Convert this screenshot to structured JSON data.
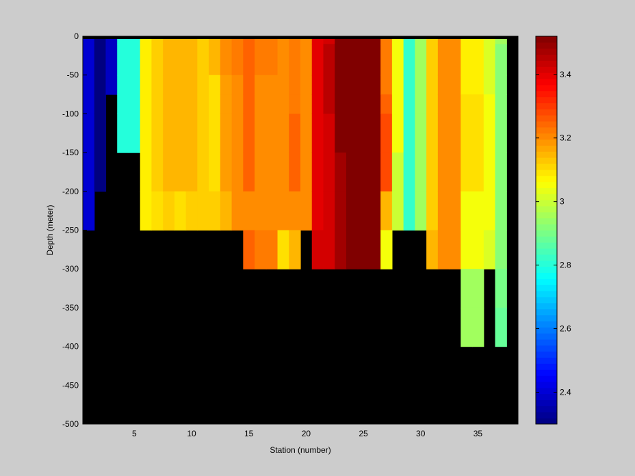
{
  "chart_data": {
    "type": "heatmap",
    "title": "",
    "xlabel": "Station (number)",
    "ylabel": "Depth (meter)",
    "xlim": [
      1,
      38
    ],
    "ylim": [
      -500,
      0
    ],
    "xticks": [
      "5",
      "10",
      "15",
      "20",
      "25",
      "30",
      "35"
    ],
    "yticks": [
      "0",
      "-50",
      "-100",
      "-150",
      "-200",
      "-250",
      "-300",
      "-350",
      "-400",
      "-450",
      "-500"
    ],
    "colorbar": {
      "range": [
        2.3,
        3.52
      ],
      "ticks": [
        "2.4",
        "2.6",
        "2.8",
        "3",
        "3.2",
        "3.4"
      ],
      "colormap": "jet"
    },
    "mask_color": "#000000",
    "depth_edges": [
      0,
      -10,
      -50,
      -75,
      -100,
      -150,
      -200,
      -250,
      -300,
      -350,
      -400,
      -500
    ],
    "stations": [
      {
        "station": 1,
        "bottom": -250,
        "values": [
          2.4,
          2.4,
          2.4,
          2.4,
          2.4,
          2.4,
          2.4
        ]
      },
      {
        "station": 2,
        "bottom": -200,
        "values": [
          2.3,
          2.3,
          2.3,
          2.3,
          2.3,
          2.3
        ]
      },
      {
        "station": 3,
        "bottom": -75,
        "values": [
          2.38,
          2.38,
          2.38
        ]
      },
      {
        "station": 4,
        "bottom": -150,
        "values": [
          2.8,
          2.8,
          2.8,
          2.8,
          2.8
        ]
      },
      {
        "station": 5,
        "bottom": -150,
        "values": [
          2.8,
          2.8,
          2.8,
          2.8,
          2.8
        ]
      },
      {
        "station": 6,
        "bottom": -250,
        "values": [
          3.08,
          3.08,
          3.08,
          3.08,
          3.08,
          3.08,
          3.08
        ]
      },
      {
        "station": 7,
        "bottom": -250,
        "values": [
          3.12,
          3.12,
          3.12,
          3.12,
          3.12,
          3.12,
          3.1
        ]
      },
      {
        "station": 8,
        "bottom": -250,
        "values": [
          3.15,
          3.15,
          3.15,
          3.15,
          3.15,
          3.15,
          3.12
        ]
      },
      {
        "station": 9,
        "bottom": -250,
        "values": [
          3.15,
          3.15,
          3.15,
          3.15,
          3.15,
          3.15,
          3.1
        ]
      },
      {
        "station": 10,
        "bottom": -250,
        "values": [
          3.15,
          3.15,
          3.15,
          3.15,
          3.15,
          3.15,
          3.12
        ]
      },
      {
        "station": 11,
        "bottom": -250,
        "values": [
          3.12,
          3.12,
          3.12,
          3.12,
          3.12,
          3.12,
          3.12
        ]
      },
      {
        "station": 12,
        "bottom": -250,
        "values": [
          3.15,
          3.15,
          3.1,
          3.1,
          3.1,
          3.1,
          3.12
        ]
      },
      {
        "station": 13,
        "bottom": -250,
        "values": [
          3.2,
          3.2,
          3.18,
          3.18,
          3.18,
          3.18,
          3.15
        ]
      },
      {
        "station": 14,
        "bottom": -250,
        "values": [
          3.22,
          3.22,
          3.2,
          3.2,
          3.2,
          3.2,
          3.2
        ]
      },
      {
        "station": 15,
        "bottom": -300,
        "values": [
          3.25,
          3.25,
          3.25,
          3.25,
          3.25,
          3.25,
          3.2,
          3.25
        ]
      },
      {
        "station": 16,
        "bottom": -300,
        "values": [
          3.22,
          3.22,
          3.2,
          3.2,
          3.2,
          3.2,
          3.2,
          3.22
        ]
      },
      {
        "station": 17,
        "bottom": -300,
        "values": [
          3.22,
          3.22,
          3.2,
          3.2,
          3.2,
          3.2,
          3.2,
          3.22
        ]
      },
      {
        "station": 18,
        "bottom": -300,
        "values": [
          3.2,
          3.2,
          3.2,
          3.2,
          3.2,
          3.2,
          3.2,
          3.1
        ]
      },
      {
        "station": 19,
        "bottom": -300,
        "values": [
          3.22,
          3.22,
          3.22,
          3.22,
          3.25,
          3.25,
          3.2,
          3.15
        ]
      },
      {
        "station": 20,
        "bottom": -250,
        "values": [
          3.2,
          3.2,
          3.2,
          3.2,
          3.2,
          3.2,
          3.2
        ]
      },
      {
        "station": 21,
        "bottom": -300,
        "values": [
          3.4,
          3.4,
          3.4,
          3.4,
          3.4,
          3.4,
          3.4,
          3.42
        ]
      },
      {
        "station": 22,
        "bottom": -300,
        "values": [
          3.42,
          3.45,
          3.45,
          3.45,
          3.42,
          3.42,
          3.42,
          3.42
        ]
      },
      {
        "station": 23,
        "bottom": -300,
        "values": [
          3.52,
          3.52,
          3.52,
          3.52,
          3.52,
          3.48,
          3.48,
          3.48
        ]
      },
      {
        "station": 24,
        "bottom": -300,
        "values": [
          3.52,
          3.52,
          3.52,
          3.52,
          3.52,
          3.52,
          3.52,
          3.52
        ]
      },
      {
        "station": 25,
        "bottom": -300,
        "values": [
          3.52,
          3.52,
          3.52,
          3.52,
          3.52,
          3.52,
          3.52,
          3.52
        ]
      },
      {
        "station": 26,
        "bottom": -300,
        "values": [
          3.52,
          3.52,
          3.52,
          3.52,
          3.52,
          3.52,
          3.52,
          3.52
        ]
      },
      {
        "station": 27,
        "bottom": -300,
        "values": [
          3.22,
          3.22,
          3.22,
          3.25,
          3.28,
          3.28,
          3.15,
          3.05
        ]
      },
      {
        "station": 28,
        "bottom": -250,
        "values": [
          3.05,
          3.05,
          3.05,
          3.05,
          3.05,
          3.0,
          3.0
        ]
      },
      {
        "station": 29,
        "bottom": -250,
        "values": [
          2.82,
          2.82,
          2.82,
          2.82,
          2.82,
          2.82,
          2.82
        ]
      },
      {
        "station": 30,
        "bottom": -250,
        "values": [
          2.95,
          2.95,
          2.95,
          2.95,
          2.95,
          2.95,
          2.95
        ]
      },
      {
        "station": 31,
        "bottom": -300,
        "values": [
          3.12,
          3.12,
          3.12,
          3.12,
          3.12,
          3.12,
          3.12,
          3.15
        ]
      },
      {
        "station": 32,
        "bottom": -300,
        "values": [
          3.2,
          3.2,
          3.2,
          3.2,
          3.2,
          3.2,
          3.2,
          3.2
        ]
      },
      {
        "station": 33,
        "bottom": -300,
        "values": [
          3.2,
          3.2,
          3.2,
          3.2,
          3.2,
          3.2,
          3.2,
          3.2
        ]
      },
      {
        "station": 34,
        "bottom": -400,
        "values": [
          3.08,
          3.08,
          3.08,
          3.1,
          3.1,
          3.1,
          3.05,
          3.05,
          2.95,
          2.95
        ]
      },
      {
        "station": 35,
        "bottom": -400,
        "values": [
          3.08,
          3.08,
          3.08,
          3.1,
          3.1,
          3.1,
          3.05,
          3.05,
          2.95,
          2.95
        ]
      },
      {
        "station": 36,
        "bottom": -300,
        "values": [
          3.02,
          3.02,
          3.02,
          3.05,
          3.05,
          3.05,
          3.05,
          3.02
        ]
      },
      {
        "station": 37,
        "bottom": -400,
        "values": [
          2.95,
          2.92,
          2.92,
          2.92,
          2.92,
          2.92,
          2.92,
          2.92,
          2.9,
          2.88
        ]
      }
    ]
  }
}
